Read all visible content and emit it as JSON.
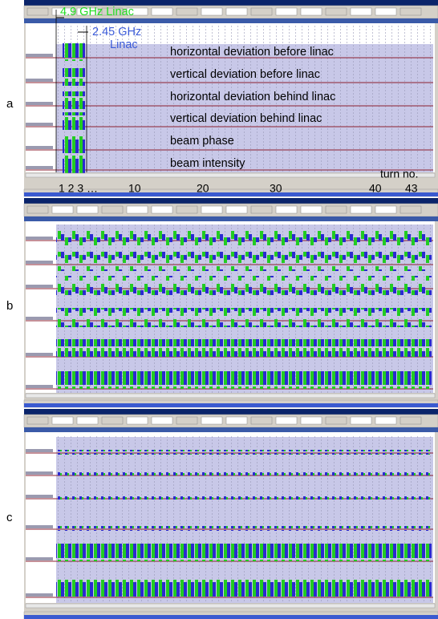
{
  "figure": {
    "panels": [
      {
        "label": "a",
        "linac_labels": [
          "4.9 GHz Linac",
          "2.45 GHz",
          "Linac"
        ],
        "traces": [
          "horizontal deviation before linac",
          "vertical deviation before linac",
          "horizontal deviation behind linac",
          "vertical deviation behind linac",
          "beam phase",
          "beam intensity"
        ],
        "turn_axis": {
          "title": "turn no.",
          "labels": [
            "1 2 3 …",
            "10",
            "20",
            "30",
            "40",
            "43"
          ]
        }
      },
      {
        "label": "b"
      },
      {
        "label": "c"
      }
    ]
  }
}
